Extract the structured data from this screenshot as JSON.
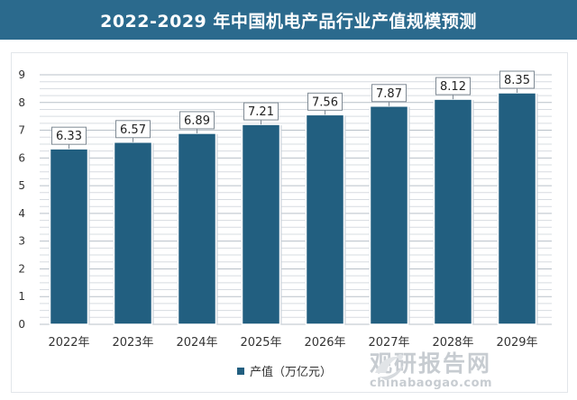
{
  "chart_data": {
    "type": "bar",
    "title": "2022-2029 年中国机电产品行业产值规模预测",
    "categories": [
      "2022年",
      "2023年",
      "2024年",
      "2025年",
      "2026年",
      "2027年",
      "2028年",
      "2029年"
    ],
    "series": [
      {
        "name": "产值（万亿元）",
        "values": [
          6.33,
          6.57,
          6.89,
          7.21,
          7.56,
          7.87,
          8.12,
          8.35
        ]
      }
    ],
    "data_labels": [
      "6.33",
      "6.57",
      "6.89",
      "7.21",
      "7.56",
      "7.87",
      "8.12",
      "8.35"
    ],
    "y_ticks": [
      "0",
      "1",
      "2",
      "3",
      "4",
      "5",
      "6",
      "7",
      "8",
      "9"
    ],
    "ylim": [
      0,
      9
    ],
    "xlabel": "",
    "ylabel": "",
    "legend_position": "bottom",
    "bar_color": "#225f80"
  },
  "title_bar_color": "#2b6a8d",
  "watermark": {
    "name_cn": "观研报告网",
    "site": "chinabaogao.com"
  }
}
